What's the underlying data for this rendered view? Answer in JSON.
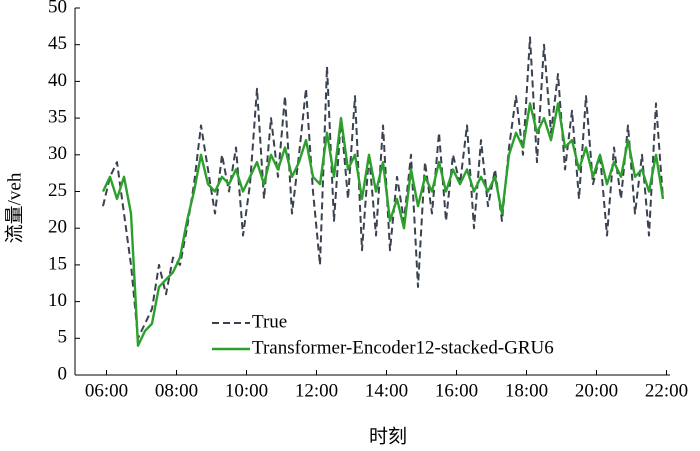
{
  "chart_data": {
    "type": "line",
    "xlabel": "时刻",
    "ylabel": "流量/veh",
    "x": [
      5.9,
      6.1,
      6.3,
      6.5,
      6.7,
      6.9,
      7.1,
      7.3,
      7.5,
      7.7,
      7.9,
      8.1,
      8.3,
      8.5,
      8.7,
      8.9,
      9.1,
      9.3,
      9.5,
      9.7,
      9.9,
      10.1,
      10.3,
      10.5,
      10.7,
      10.9,
      11.1,
      11.3,
      11.5,
      11.7,
      11.9,
      12.1,
      12.3,
      12.5,
      12.7,
      12.9,
      13.1,
      13.3,
      13.5,
      13.7,
      13.9,
      14.1,
      14.3,
      14.5,
      14.7,
      14.9,
      15.1,
      15.3,
      15.5,
      15.7,
      15.9,
      16.1,
      16.3,
      16.5,
      16.7,
      16.9,
      17.1,
      17.3,
      17.5,
      17.7,
      17.9,
      18.1,
      18.3,
      18.5,
      18.7,
      18.9,
      19.1,
      19.3,
      19.5,
      19.7,
      19.9,
      20.1,
      20.3,
      20.5,
      20.7,
      20.9,
      21.1,
      21.3,
      21.5,
      21.7,
      21.9
    ],
    "series": [
      {
        "name": "True",
        "color": "#3a4250",
        "dash": true,
        "values": [
          23,
          27,
          29,
          22,
          15,
          5,
          7,
          9,
          15,
          11,
          16,
          15,
          20,
          26,
          34,
          28,
          22,
          30,
          25,
          31,
          19,
          26,
          39,
          24,
          35,
          27,
          38,
          22,
          30,
          39,
          25,
          15,
          42,
          21,
          35,
          24,
          38,
          17,
          30,
          19,
          34,
          17,
          27,
          21,
          30,
          12,
          29,
          22,
          33,
          21,
          30,
          26,
          34,
          20,
          32,
          23,
          28,
          21,
          31,
          38,
          30,
          46,
          29,
          45,
          33,
          41,
          28,
          36,
          24,
          38,
          26,
          30,
          19,
          31,
          24,
          34,
          22,
          30,
          19,
          37,
          24
        ]
      },
      {
        "name": "Transformer-Encoder12-stacked-GRU6",
        "color": "#2ca02c",
        "dash": false,
        "values": [
          25,
          27,
          24,
          27,
          22,
          4,
          6,
          7,
          12,
          13,
          14,
          16,
          21,
          25,
          30,
          26,
          25,
          27,
          26,
          28,
          25,
          27,
          29,
          26,
          30,
          28,
          31,
          27,
          29,
          32,
          27,
          26,
          33,
          27,
          35,
          28,
          30,
          24,
          30,
          25,
          29,
          21,
          24,
          20,
          28,
          23,
          27,
          25,
          29,
          25,
          28,
          26,
          28,
          25,
          27,
          25,
          27,
          22,
          30,
          33,
          31,
          37,
          33,
          35,
          32,
          37,
          31,
          32,
          28,
          31,
          27,
          30,
          26,
          29,
          27,
          32,
          27,
          28,
          25,
          30,
          24
        ]
      }
    ],
    "xlim": [
      5.1,
      22.1
    ],
    "xticks": [
      {
        "value": 6,
        "label": "06:00"
      },
      {
        "value": 8,
        "label": "08:00"
      },
      {
        "value": 10,
        "label": "10:00"
      },
      {
        "value": 12,
        "label": "12:00"
      },
      {
        "value": 14,
        "label": "14:00"
      },
      {
        "value": 16,
        "label": "16:00"
      },
      {
        "value": 18,
        "label": "18:00"
      },
      {
        "value": 20,
        "label": "20:00"
      },
      {
        "value": 22,
        "label": "22:00"
      }
    ],
    "ylim": [
      0,
      50
    ],
    "yticks": [
      0,
      5,
      10,
      15,
      20,
      25,
      30,
      35,
      40,
      45,
      50
    ],
    "grid": false,
    "legend": "lower center"
  }
}
